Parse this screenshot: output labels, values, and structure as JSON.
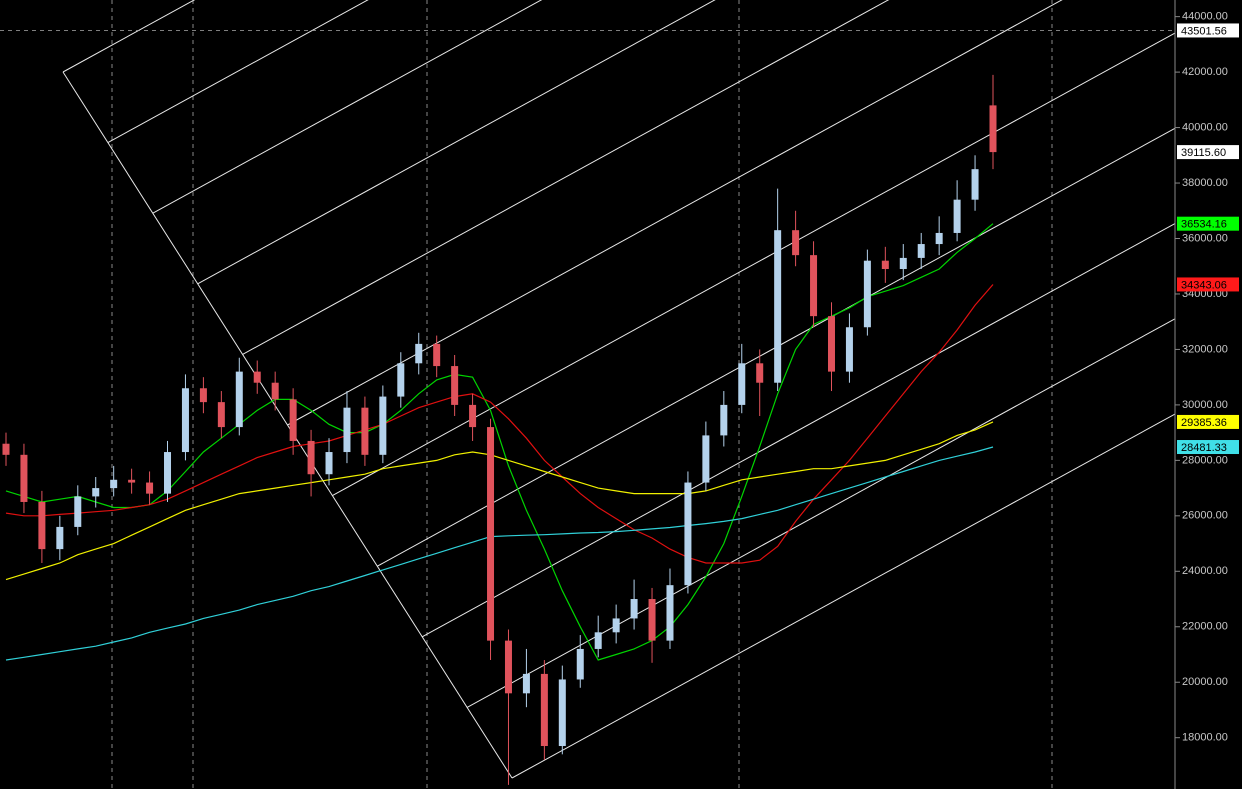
{
  "chart_data": {
    "type": "candlestick",
    "ylim": [
      16150,
      44600
    ],
    "yticks": [
      {
        "value": 18000,
        "label": "18000.00"
      },
      {
        "value": 20000,
        "label": "20000.00"
      },
      {
        "value": 22000,
        "label": "22000.00"
      },
      {
        "value": 24000,
        "label": "24000.00"
      },
      {
        "value": 26000,
        "label": "26000.00"
      },
      {
        "value": 28000,
        "label": "28000.00"
      },
      {
        "value": 30000,
        "label": "30000.00"
      },
      {
        "value": 32000,
        "label": "32000.00"
      },
      {
        "value": 34000,
        "label": "34000.00"
      },
      {
        "value": 36000,
        "label": "36000.00"
      },
      {
        "value": 38000,
        "label": "38000.00"
      },
      {
        "value": 40000,
        "label": "40000.00"
      },
      {
        "value": 42000,
        "label": "42000.00"
      },
      {
        "value": 44000,
        "label": "44000.00"
      }
    ],
    "up_color": "#b4d2ec",
    "down_color": "#e0535c",
    "open": [
      28600,
      28200,
      26500,
      24800,
      25600,
      26700,
      27000,
      27300,
      27200,
      26800,
      28300,
      30600,
      30100,
      29200,
      31200,
      30800,
      30200,
      28700,
      27500,
      28300,
      29900,
      28200,
      30300,
      31500,
      32200,
      31400,
      30000,
      29200,
      21500,
      19600,
      20300,
      17700,
      20100,
      21200,
      21800,
      22300,
      23000,
      21500,
      23500,
      27200,
      28900,
      30000,
      31500,
      30800,
      36300,
      35400,
      33200,
      31200,
      32800,
      35200,
      34900,
      35300,
      35800,
      36200,
      37400,
      40800
    ],
    "high": [
      29000,
      28600,
      26900,
      26000,
      27100,
      27400,
      27800,
      27700,
      27600,
      28700,
      31100,
      31000,
      30500,
      31700,
      31600,
      31200,
      30600,
      29100,
      28800,
      30500,
      30300,
      30700,
      31900,
      32600,
      32500,
      31800,
      30400,
      29500,
      21900,
      21200,
      20800,
      20600,
      21700,
      22400,
      22800,
      23700,
      23400,
      24100,
      27600,
      29400,
      30500,
      32200,
      32000,
      37800,
      37000,
      35900,
      33700,
      33300,
      35600,
      35700,
      35800,
      36200,
      36800,
      38100,
      39000,
      41900
    ],
    "low": [
      27800,
      26100,
      24300,
      24400,
      25300,
      26300,
      26700,
      26800,
      26400,
      26500,
      28000,
      29700,
      28800,
      28900,
      30400,
      29800,
      28200,
      26700,
      27100,
      27900,
      27800,
      27900,
      29900,
      31100,
      31000,
      29600,
      28700,
      20800,
      16300,
      19100,
      17200,
      17400,
      19800,
      20900,
      21400,
      21900,
      20700,
      21200,
      23200,
      26900,
      28500,
      29700,
      29600,
      30500,
      35000,
      32800,
      30500,
      30800,
      32500,
      34400,
      34500,
      34900,
      35400,
      35900,
      37000,
      38500
    ],
    "close": [
      28200,
      26500,
      24800,
      25600,
      26700,
      27000,
      27300,
      27200,
      26800,
      28300,
      30600,
      30100,
      29200,
      31200,
      30800,
      30200,
      28700,
      27500,
      28300,
      29900,
      28200,
      30300,
      31500,
      32200,
      31400,
      30000,
      29200,
      21500,
      19600,
      20300,
      17700,
      20100,
      21200,
      21800,
      22300,
      23000,
      21500,
      23500,
      27200,
      28900,
      30000,
      31500,
      30800,
      36300,
      35400,
      33200,
      31200,
      32800,
      35200,
      34900,
      35300,
      35800,
      36200,
      37400,
      38500,
      39115.6
    ],
    "last_price_label": "39115.60",
    "crosshair_price": 43501.56,
    "series": [
      {
        "color": "#00d400",
        "values": [
          26900,
          26700,
          26500,
          26600,
          26700,
          26500,
          26300,
          26300,
          26400,
          26900,
          27600,
          28300,
          28800,
          29300,
          29800,
          30200,
          30200,
          29800,
          29300,
          29000,
          29000,
          29300,
          29800,
          30400,
          30900,
          31100,
          31000,
          29800,
          27800,
          26200,
          24800,
          23300,
          22000,
          20800,
          21000,
          21200,
          21500,
          22000,
          22800,
          23800,
          25000,
          26700,
          28500,
          30400,
          32000,
          32900,
          33200,
          33500,
          33900,
          34100,
          34300,
          34600,
          34900,
          35500,
          36000,
          36534.16
        ]
      },
      {
        "color": "#e01010",
        "values": [
          26100,
          26000,
          26000,
          26050,
          26100,
          26150,
          26200,
          26300,
          26400,
          26600,
          26900,
          27200,
          27500,
          27800,
          28100,
          28300,
          28500,
          28600,
          28700,
          28900,
          29100,
          29300,
          29600,
          29900,
          30100,
          30300,
          30400,
          30100,
          29500,
          28800,
          28000,
          27400,
          26800,
          26300,
          25900,
          25500,
          25200,
          24800,
          24500,
          24300,
          24300,
          24300,
          24400,
          24900,
          25800,
          26600,
          27300,
          28000,
          28800,
          29600,
          30400,
          31200,
          31900,
          32700,
          33600,
          34343.06
        ]
      },
      {
        "color": "#f0f000",
        "values": [
          23700,
          23900,
          24100,
          24300,
          24600,
          24800,
          25000,
          25300,
          25600,
          25900,
          26200,
          26400,
          26600,
          26800,
          26900,
          27000,
          27100,
          27200,
          27300,
          27400,
          27500,
          27700,
          27800,
          27900,
          28000,
          28200,
          28300,
          28200,
          28000,
          27800,
          27600,
          27400,
          27200,
          27000,
          26900,
          26800,
          26800,
          26800,
          26800,
          26900,
          27100,
          27300,
          27400,
          27500,
          27600,
          27700,
          27700,
          27800,
          27900,
          28000,
          28200,
          28400,
          28600,
          28900,
          29100,
          29385.36
        ]
      },
      {
        "color": "#30d0d8",
        "values": [
          20800,
          20900,
          21000,
          21100,
          21200,
          21300,
          21450,
          21600,
          21800,
          21950,
          22100,
          22300,
          22450,
          22600,
          22800,
          22950,
          23100,
          23300,
          23450,
          23650,
          23850,
          24050,
          24250,
          24450,
          24650,
          24850,
          25050,
          25250,
          25280,
          25300,
          25320,
          25350,
          25380,
          25400,
          25430,
          25480,
          25530,
          25580,
          25650,
          25720,
          25800,
          25900,
          26050,
          26200,
          26400,
          26600,
          26800,
          27000,
          27200,
          27400,
          27600,
          27800,
          28000,
          28150,
          28300,
          28481.33
        ]
      }
    ]
  }
}
